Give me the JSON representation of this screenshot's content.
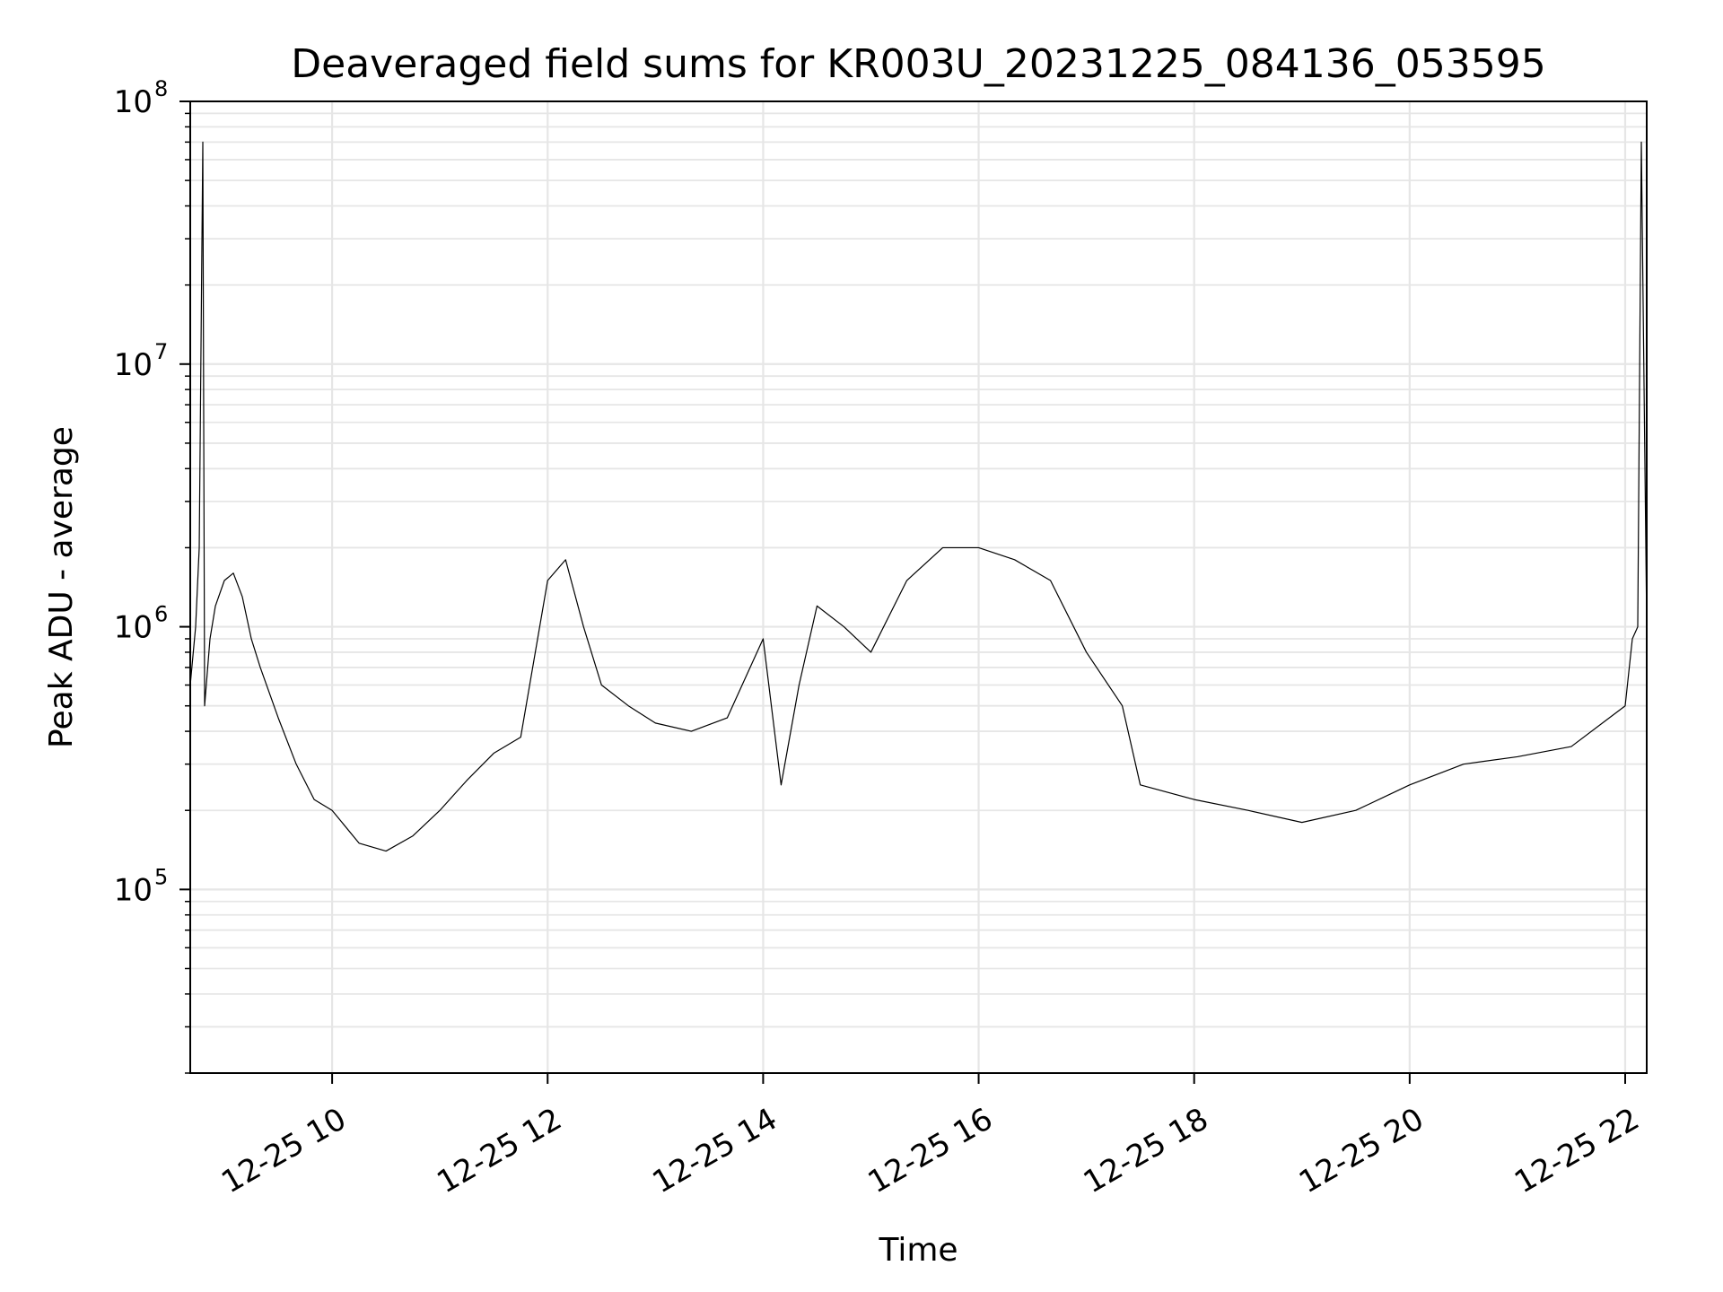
{
  "chart_data": {
    "type": "line",
    "title": "Deaveraged field sums for KR003U_20231225_084136_053595",
    "xlabel": "Time",
    "ylabel": "Peak ADU - average",
    "xscale": "time",
    "yscale": "log",
    "xlim": [
      "2023-12-25 08:41",
      "2023-12-25 22:12"
    ],
    "ylim": [
      20000,
      100000000
    ],
    "grid": true,
    "legend": "none",
    "line_color": "#000000",
    "grid_color": "#e6e6e6",
    "x_ticks": [
      {
        "t": "2023-12-25 10:00",
        "label": "12-25 10"
      },
      {
        "t": "2023-12-25 12:00",
        "label": "12-25 12"
      },
      {
        "t": "2023-12-25 14:00",
        "label": "12-25 14"
      },
      {
        "t": "2023-12-25 16:00",
        "label": "12-25 16"
      },
      {
        "t": "2023-12-25 18:00",
        "label": "12-25 18"
      },
      {
        "t": "2023-12-25 20:00",
        "label": "12-25 20"
      },
      {
        "t": "2023-12-25 22:00",
        "label": "12-25 22"
      }
    ],
    "y_ticks": [
      {
        "v": 100000,
        "base": "10",
        "exp": "5"
      },
      {
        "v": 1000000,
        "base": "10",
        "exp": "6"
      },
      {
        "v": 10000000,
        "base": "10",
        "exp": "7"
      },
      {
        "v": 100000000,
        "base": "10",
        "exp": "8"
      }
    ],
    "series": [
      {
        "x": [
          "2023-12-25 08:41",
          "2023-12-25 08:44",
          "2023-12-25 08:46",
          "2023-12-25 08:48",
          "2023-12-25 08:49",
          "2023-12-25 08:52",
          "2023-12-25 08:55",
          "2023-12-25 09:00",
          "2023-12-25 09:05",
          "2023-12-25 09:10",
          "2023-12-25 09:15",
          "2023-12-25 09:20",
          "2023-12-25 09:30",
          "2023-12-25 09:40",
          "2023-12-25 09:50",
          "2023-12-25 10:00",
          "2023-12-25 10:15",
          "2023-12-25 10:30",
          "2023-12-25 10:45",
          "2023-12-25 11:00",
          "2023-12-25 11:15",
          "2023-12-25 11:30",
          "2023-12-25 11:45",
          "2023-12-25 12:00",
          "2023-12-25 12:10",
          "2023-12-25 12:20",
          "2023-12-25 12:30",
          "2023-12-25 12:45",
          "2023-12-25 13:00",
          "2023-12-25 13:20",
          "2023-12-25 13:40",
          "2023-12-25 14:00",
          "2023-12-25 14:10",
          "2023-12-25 14:20",
          "2023-12-25 14:30",
          "2023-12-25 14:45",
          "2023-12-25 15:00",
          "2023-12-25 15:20",
          "2023-12-25 15:40",
          "2023-12-25 16:00",
          "2023-12-25 16:20",
          "2023-12-25 16:40",
          "2023-12-25 17:00",
          "2023-12-25 17:20",
          "2023-12-25 17:30",
          "2023-12-25 18:00",
          "2023-12-25 18:30",
          "2023-12-25 19:00",
          "2023-12-25 19:30",
          "2023-12-25 20:00",
          "2023-12-25 20:30",
          "2023-12-25 21:00",
          "2023-12-25 21:30",
          "2023-12-25 22:00",
          "2023-12-25 22:04",
          "2023-12-25 22:07",
          "2023-12-25 22:09",
          "2023-12-25 22:12"
        ],
        "y": [
          600000,
          1000000,
          2000000,
          70000000,
          500000,
          900000,
          1200000,
          1500000,
          1600000,
          1300000,
          900000,
          700000,
          450000,
          300000,
          220000,
          200000,
          150000,
          140000,
          160000,
          200000,
          260000,
          330000,
          380000,
          1500000,
          1800000,
          1000000,
          600000,
          500000,
          430000,
          400000,
          450000,
          900000,
          250000,
          600000,
          1200000,
          1000000,
          800000,
          1500000,
          2000000,
          2000000,
          1800000,
          1500000,
          800000,
          500000,
          250000,
          220000,
          200000,
          180000,
          200000,
          250000,
          300000,
          320000,
          350000,
          500000,
          900000,
          1000000,
          70000000,
          1000000
        ]
      }
    ]
  }
}
